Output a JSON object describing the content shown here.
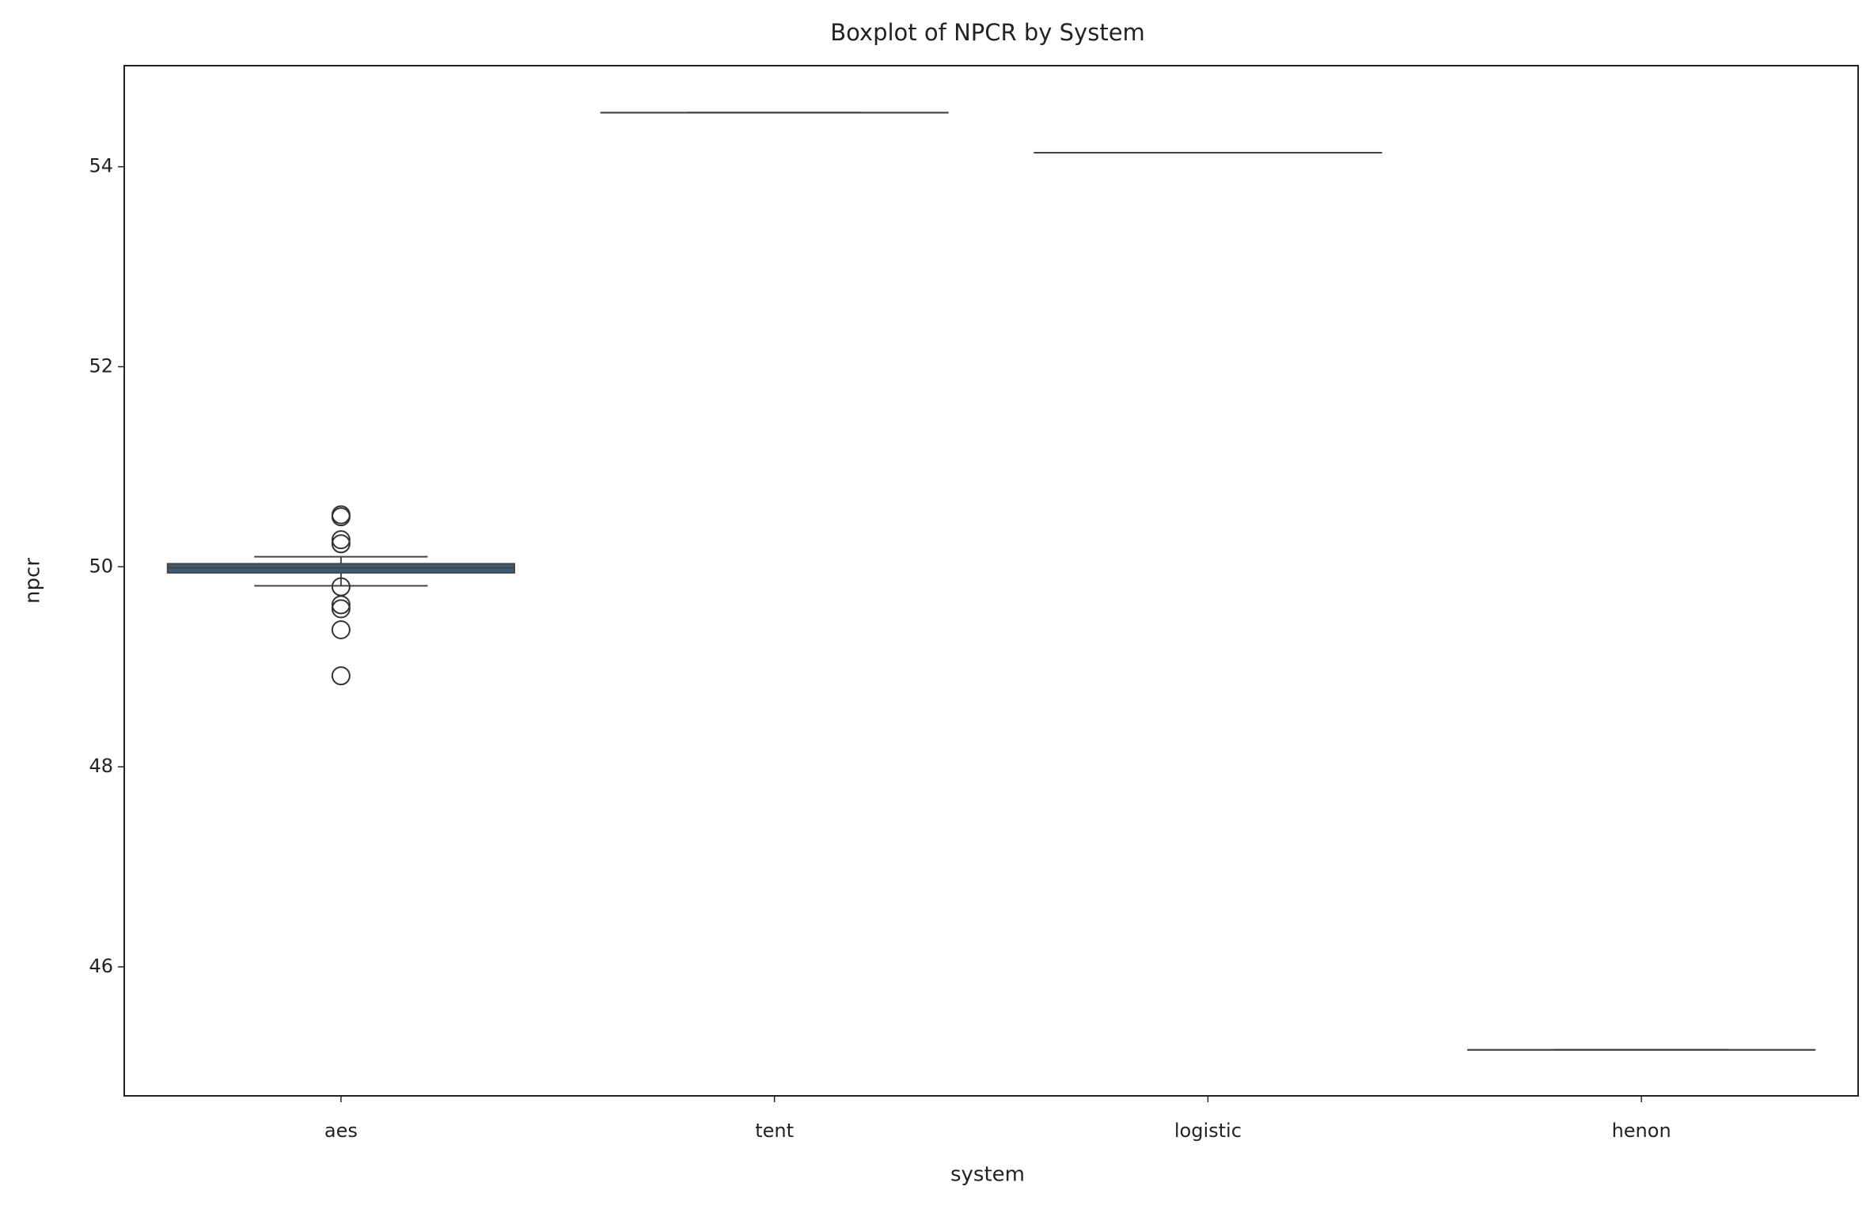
{
  "chart_data": {
    "type": "box",
    "title": "Boxplot of NPCR by System",
    "x_label": "system",
    "y_label": "npcr",
    "categories": [
      "aes",
      "tent",
      "logistic",
      "henon"
    ],
    "color": "#3b5b7a",
    "boxes": [
      {
        "min": 49.81,
        "q1": 49.94,
        "median": 49.99,
        "q3": 50.03,
        "max": 50.1,
        "outliers": [
          50.52,
          50.5,
          50.27,
          50.23,
          49.8,
          49.62,
          49.58,
          49.37,
          48.91
        ]
      },
      {
        "min": 54.54,
        "q1": 54.54,
        "median": 54.54,
        "q3": 54.54,
        "max": 54.54,
        "outliers": []
      },
      {
        "min": 54.14,
        "q1": 54.14,
        "median": 54.14,
        "q3": 54.14,
        "max": 54.14,
        "outliers": []
      },
      {
        "min": 45.17,
        "q1": 45.17,
        "median": 45.17,
        "q3": 45.17,
        "max": 45.17,
        "outliers": []
      }
    ],
    "ylim": [
      44.71,
      55.01
    ],
    "yticks": [
      46,
      48,
      50,
      52,
      54
    ]
  }
}
